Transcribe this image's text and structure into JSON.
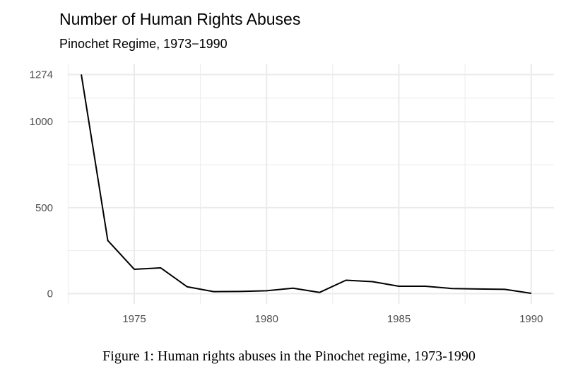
{
  "chart_data": {
    "type": "line",
    "title": "Number of Human Rights Abuses",
    "subtitle": "Pinochet Regime, 1973−1990",
    "xlabel": "",
    "ylabel": "",
    "x": [
      1973,
      1974,
      1975,
      1976,
      1977,
      1978,
      1979,
      1980,
      1981,
      1982,
      1983,
      1984,
      1985,
      1986,
      1987,
      1988,
      1989,
      1990
    ],
    "values": [
      1274,
      309,
      142,
      150,
      40,
      12,
      13,
      17,
      32,
      7,
      78,
      70,
      43,
      43,
      30,
      27,
      25,
      2
    ],
    "xlim": [
      1972.5,
      1990.8
    ],
    "ylim": [
      -60,
      1300
    ],
    "x_ticks": [
      1975,
      1980,
      1985,
      1990
    ],
    "y_ticks": [
      0,
      500,
      1000,
      1274
    ],
    "grid": true,
    "line_color": "#000000",
    "grid_color": "#ebebeb"
  },
  "caption": "Figure 1: Human rights abuses in the Pinochet regime, 1973-1990"
}
